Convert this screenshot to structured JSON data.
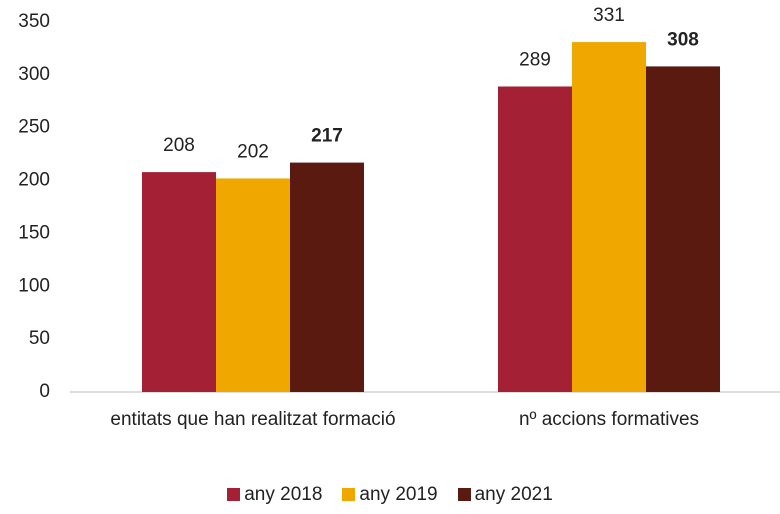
{
  "chart_data": {
    "type": "bar",
    "categories": [
      "entitats que han realitzat formació",
      "nº accions formatives"
    ],
    "series": [
      {
        "name": "any 2018",
        "color": "#a32035",
        "values": [
          208,
          289
        ]
      },
      {
        "name": "any 2019",
        "color": "#f0a800",
        "values": [
          202,
          331
        ]
      },
      {
        "name": "any 2021",
        "color": "#5a1a10",
        "values": [
          217,
          308
        ]
      }
    ],
    "ylim": [
      0,
      350
    ],
    "yticks": [
      0,
      50,
      100,
      150,
      200,
      250,
      300,
      350
    ],
    "grid": false,
    "legend": "bottom"
  }
}
